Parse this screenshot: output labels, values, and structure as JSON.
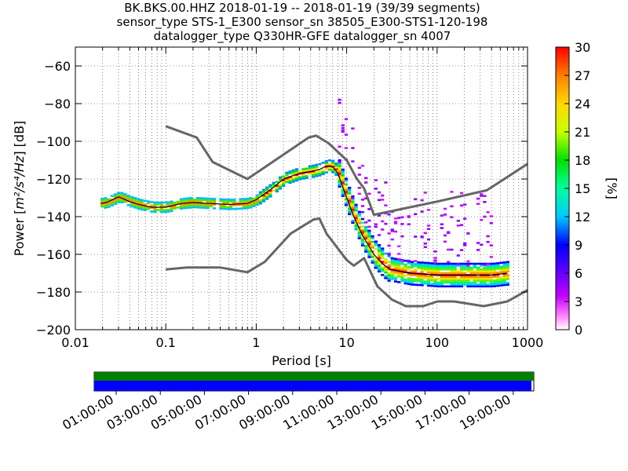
{
  "title_lines": [
    "BK.BKS.00.HHZ   2018-01-19 -- 2018-01-19  (39/39 segments)",
    "sensor_type STS-1_E300 sensor_sn 38505_E300-STS1-120-198",
    "datalogger_type Q330HR-GFE datalogger_sn 4007"
  ],
  "chart_data": {
    "type": "heatmap",
    "xlabel": "Period [s]",
    "ylabel_prefix": "Power [",
    "ylabel_units": "m²/s⁴/Hz",
    "ylabel_suffix": "] [dB]",
    "x_scale": "log",
    "xlim": [
      0.01,
      1000
    ],
    "ylim": [
      -200,
      -50
    ],
    "x_ticks": [
      0.01,
      0.1,
      1,
      10,
      100,
      1000
    ],
    "x_tick_labels": [
      "0.01",
      "0.1",
      "1",
      "10",
      "100",
      "1000"
    ],
    "y_ticks": [
      -200,
      -180,
      -160,
      -140,
      -120,
      -100,
      -80,
      -60
    ],
    "y_tick_labels": [
      "−200",
      "−180",
      "−160",
      "−140",
      "−120",
      "−100",
      "−80",
      "−60"
    ],
    "grid": true,
    "colorbar": {
      "label": "[%]",
      "range": [
        0,
        30
      ],
      "ticks": [
        0,
        3,
        6,
        9,
        12,
        15,
        18,
        21,
        24,
        27,
        30
      ],
      "tick_labels": [
        "0",
        "3",
        "6",
        "9",
        "12",
        "15",
        "18",
        "21",
        "24",
        "27",
        "30"
      ]
    },
    "noise_model_high": [
      [
        0.1,
        -92
      ],
      [
        0.22,
        -98
      ],
      [
        0.33,
        -111
      ],
      [
        0.8,
        -120
      ],
      [
        3.8,
        -98
      ],
      [
        4.6,
        -97
      ],
      [
        6.3,
        -101
      ],
      [
        10,
        -110
      ],
      [
        13,
        -120
      ],
      [
        15.6,
        -125
      ],
      [
        20,
        -139
      ],
      [
        40,
        -136
      ],
      [
        100,
        -132
      ],
      [
        354.8,
        -126
      ],
      [
        1000,
        -112
      ]
    ],
    "noise_model_low": [
      [
        0.1,
        -168
      ],
      [
        0.17,
        -167
      ],
      [
        0.4,
        -167
      ],
      [
        0.8,
        -169.5
      ],
      [
        1.24,
        -164
      ],
      [
        2.4,
        -149
      ],
      [
        4.3,
        -141.5
      ],
      [
        5.0,
        -141
      ],
      [
        6.0,
        -149
      ],
      [
        10,
        -163
      ],
      [
        12,
        -166
      ],
      [
        15.6,
        -162
      ],
      [
        21.9,
        -177
      ],
      [
        31.6,
        -184
      ],
      [
        45,
        -187.5
      ],
      [
        70,
        -187.5
      ],
      [
        101,
        -185
      ],
      [
        154,
        -185
      ],
      [
        328,
        -187.5
      ],
      [
        600,
        -185
      ],
      [
        1000,
        -179
      ]
    ],
    "mean_curve": [
      [
        0.019,
        -133
      ],
      [
        0.022,
        -132.5
      ],
      [
        0.03,
        -129.5
      ],
      [
        0.04,
        -132
      ],
      [
        0.05,
        -133.5
      ],
      [
        0.07,
        -135
      ],
      [
        0.1,
        -135
      ],
      [
        0.15,
        -133
      ],
      [
        0.2,
        -132.5
      ],
      [
        0.3,
        -133
      ],
      [
        0.5,
        -133.5
      ],
      [
        0.8,
        -133
      ],
      [
        1.0,
        -131
      ],
      [
        1.5,
        -125
      ],
      [
        2.0,
        -120
      ],
      [
        3.0,
        -117
      ],
      [
        4.0,
        -116
      ],
      [
        5.0,
        -115
      ],
      [
        6.0,
        -113
      ],
      [
        7.0,
        -113.5
      ],
      [
        8.0,
        -117
      ],
      [
        10,
        -130
      ],
      [
        12,
        -140
      ],
      [
        15,
        -150
      ],
      [
        20,
        -160
      ],
      [
        25,
        -165
      ],
      [
        30,
        -168
      ],
      [
        50,
        -170
      ],
      [
        100,
        -171
      ],
      [
        200,
        -171
      ],
      [
        400,
        -171
      ],
      [
        600,
        -170
      ]
    ],
    "time_axis": {
      "tick_labels": [
        "01:00:00",
        "03:00:00",
        "05:00:00",
        "07:00:00",
        "09:00:00",
        "11:00:00",
        "13:00:00",
        "15:00:00",
        "17:00:00",
        "19:00:00"
      ],
      "bar_colors": [
        "#007f00",
        "#0000ff"
      ]
    }
  }
}
